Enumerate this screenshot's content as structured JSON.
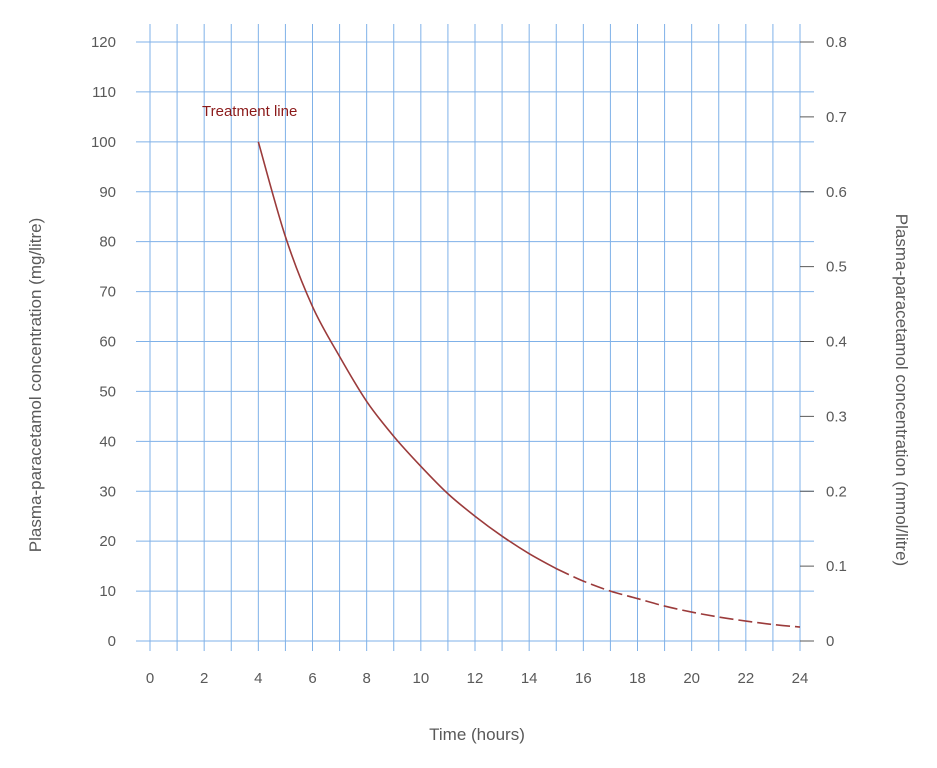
{
  "chart_data": {
    "type": "line",
    "annotation": "Treatment line",
    "xlabel": "Time (hours)",
    "ylabel": "Plasma-paracetamol concentration (mg/litre)",
    "y2label": "Plasma-paracetamol concentration (mmol/litre)",
    "xlim": [
      0,
      24
    ],
    "ylim": [
      0,
      120
    ],
    "y2lim": [
      0,
      0.8
    ],
    "x_ticks": [
      "0",
      "2",
      "4",
      "6",
      "8",
      "10",
      "12",
      "14",
      "16",
      "18",
      "20",
      "22",
      "24"
    ],
    "y_ticks": [
      "0",
      "10",
      "20",
      "30",
      "40",
      "50",
      "60",
      "70",
      "80",
      "90",
      "100",
      "110",
      "120"
    ],
    "y2_ticks": [
      "0",
      "0.1",
      "0.2",
      "0.3",
      "0.4",
      "0.5",
      "0.6",
      "0.7",
      "0.8"
    ],
    "grid": true,
    "grid_color": "#7fb1e8",
    "line_color": "#9b3b3b",
    "series": [
      {
        "x": [
          4,
          5,
          6,
          7,
          8,
          9,
          10,
          11,
          12,
          13,
          14,
          15
        ],
        "y": [
          100,
          81,
          67,
          57,
          48,
          41,
          35,
          29.5,
          25,
          21,
          17.5,
          14.5
        ],
        "style": "solid"
      },
      {
        "x": [
          15,
          16,
          17,
          18,
          19,
          20,
          21,
          22,
          23,
          24
        ],
        "y": [
          14.5,
          12,
          10,
          8.5,
          7,
          5.8,
          4.8,
          4,
          3.3,
          2.8
        ],
        "style": "dashed"
      }
    ]
  }
}
